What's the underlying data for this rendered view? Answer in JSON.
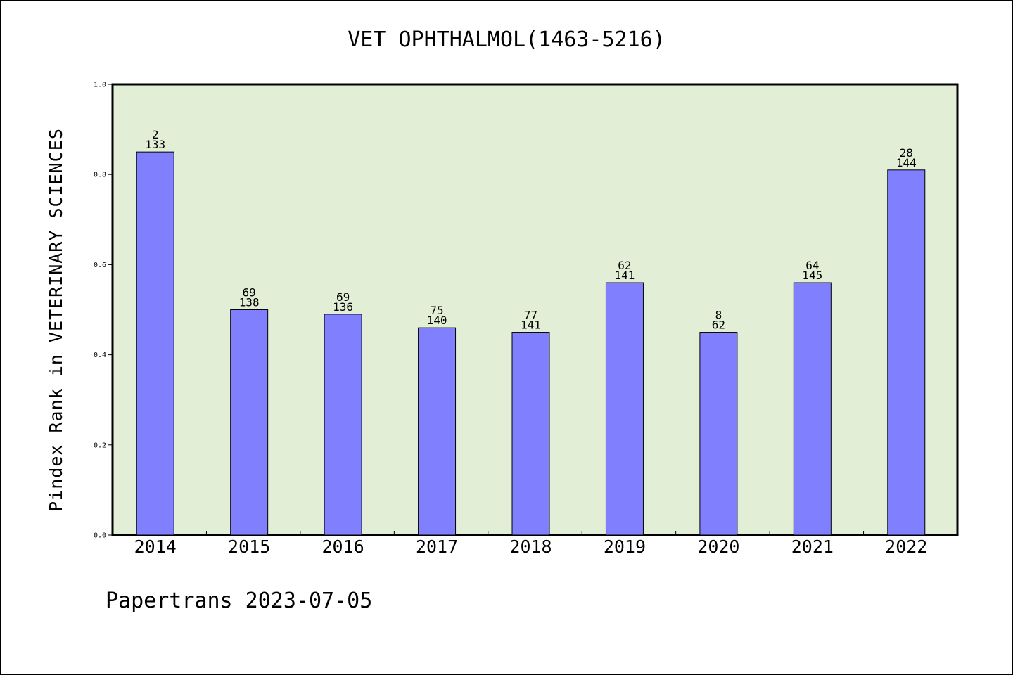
{
  "chart_data": {
    "type": "bar",
    "title": "VET OPHTHALMOL(1463-5216)",
    "ylabel": "Pindex Rank in VETERINARY SCIENCES",
    "xlabel": "",
    "categories": [
      "2014",
      "2015",
      "2016",
      "2017",
      "2018",
      "2019",
      "2020",
      "2021",
      "2022"
    ],
    "values": [
      0.85,
      0.5,
      0.49,
      0.46,
      0.45,
      0.56,
      0.45,
      0.56,
      0.81
    ],
    "labels_top": [
      "2",
      "69",
      "69",
      "75",
      "77",
      "62",
      "8",
      "64",
      "28"
    ],
    "labels_bottom": [
      "133",
      "138",
      "136",
      "140",
      "141",
      "141",
      "62",
      "145",
      "144"
    ],
    "ylim": [
      0,
      1.0
    ],
    "yticks": [
      "0.0",
      "0.2",
      "0.4",
      "0.6",
      "0.8",
      "1.0"
    ],
    "grid": false,
    "colors": {
      "plot_background": "#e2efd6",
      "bar_fill": "#8080ff",
      "bar_stroke": "#000000"
    }
  },
  "footer": "Papertrans 2023-07-05"
}
